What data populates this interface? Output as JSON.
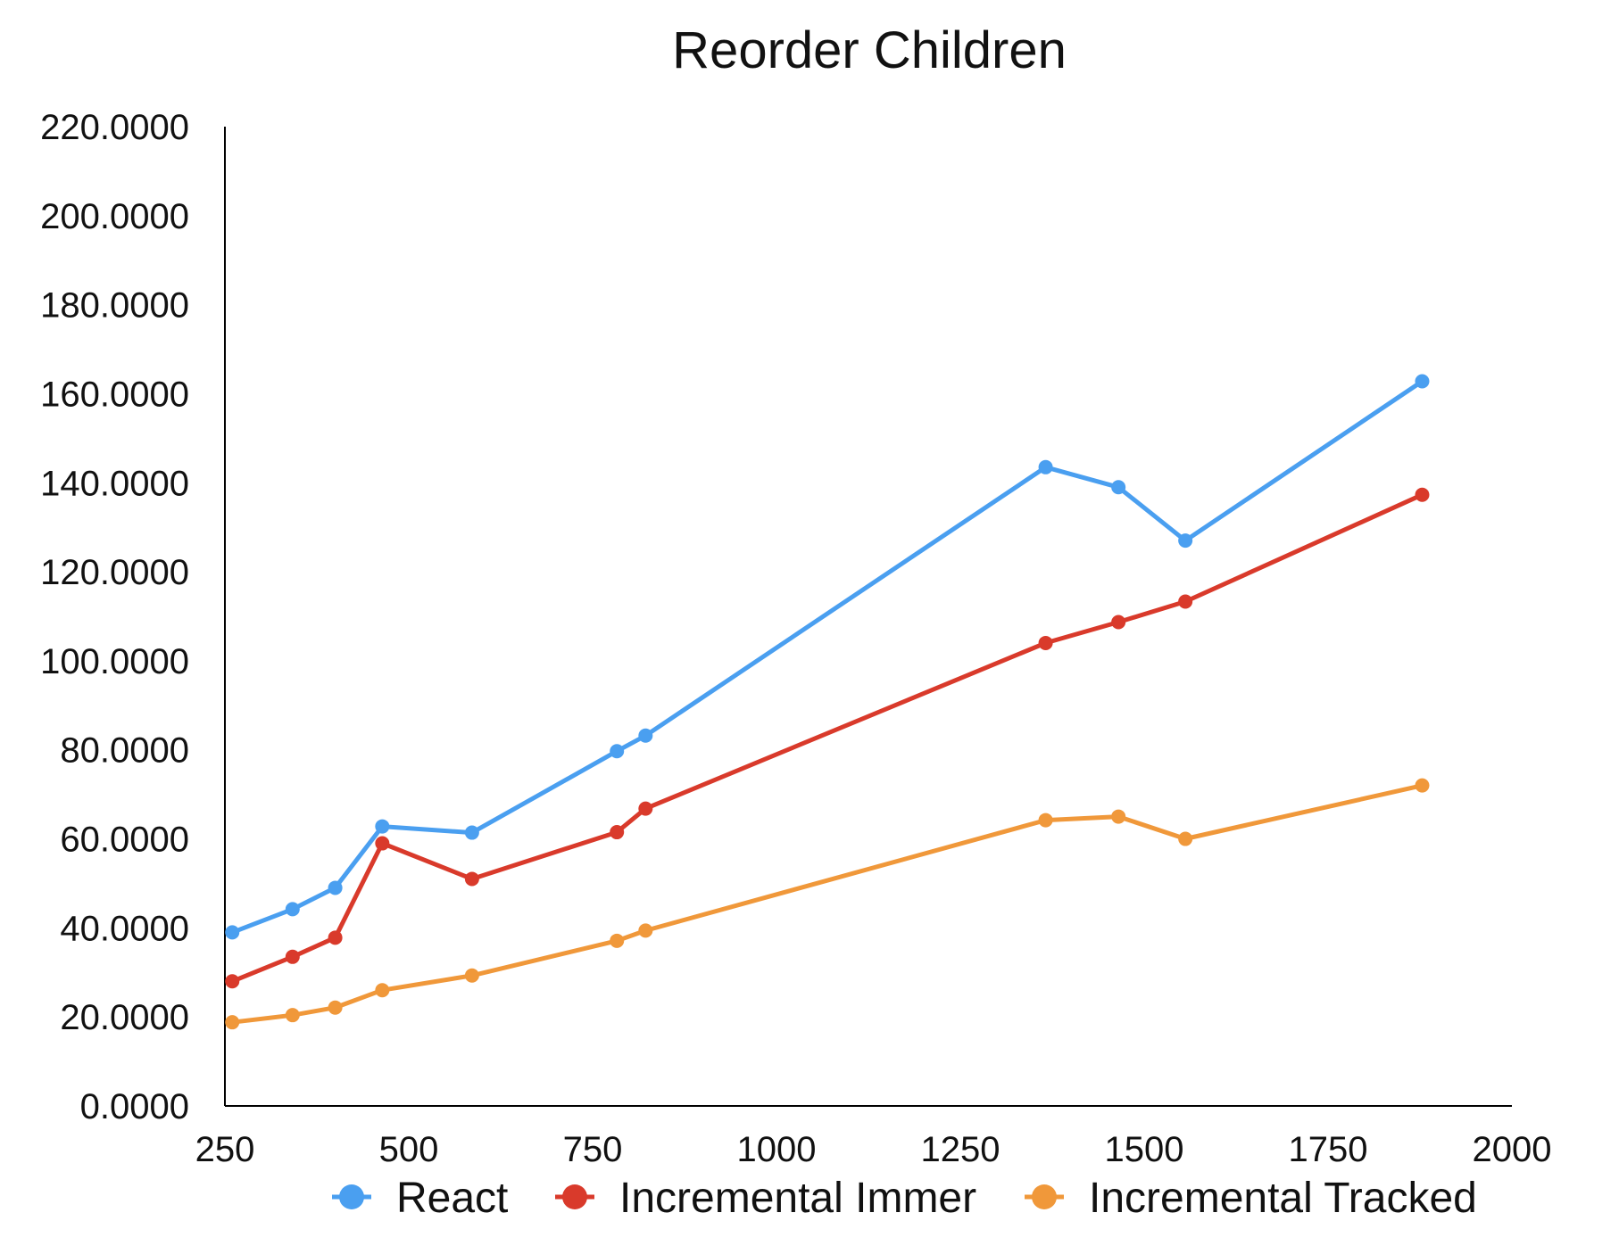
{
  "chart_data": {
    "type": "line",
    "title": "Reorder Children",
    "xlabel": "",
    "ylabel": "",
    "xlim": [
      250,
      2000
    ],
    "ylim": [
      0,
      220
    ],
    "x_ticks": [
      "250",
      "500",
      "750",
      "1000",
      "1250",
      "1500",
      "1750",
      "2000"
    ],
    "y_ticks": [
      "0.0000",
      "20.0000",
      "40.0000",
      "60.0000",
      "80.0000",
      "100.0000",
      "120.0000",
      "140.0000",
      "160.0000",
      "180.0000",
      "200.0000",
      "220.0000"
    ],
    "grid": false,
    "legend_position": "bottom",
    "x": [
      260,
      342,
      400,
      464,
      586,
      783,
      822,
      1366,
      1465,
      1556,
      1878
    ],
    "series": [
      {
        "name": "React",
        "color": "#4a9ff0",
        "values": [
          39.0,
          44.2,
          49.0,
          62.8,
          61.4,
          79.7,
          83.2,
          143.5,
          139.0,
          127.0,
          162.8
        ]
      },
      {
        "name": "Incremental Immer",
        "color": "#d93a2b",
        "values": [
          28.0,
          33.5,
          37.8,
          59.0,
          51.0,
          61.5,
          66.8,
          104.0,
          108.7,
          113.3,
          137.3
        ]
      },
      {
        "name": "Incremental Tracked",
        "color": "#f0983a",
        "values": [
          18.8,
          20.4,
          22.1,
          26.0,
          29.3,
          37.1,
          39.4,
          64.2,
          65.0,
          60.0,
          72.0
        ]
      }
    ]
  }
}
